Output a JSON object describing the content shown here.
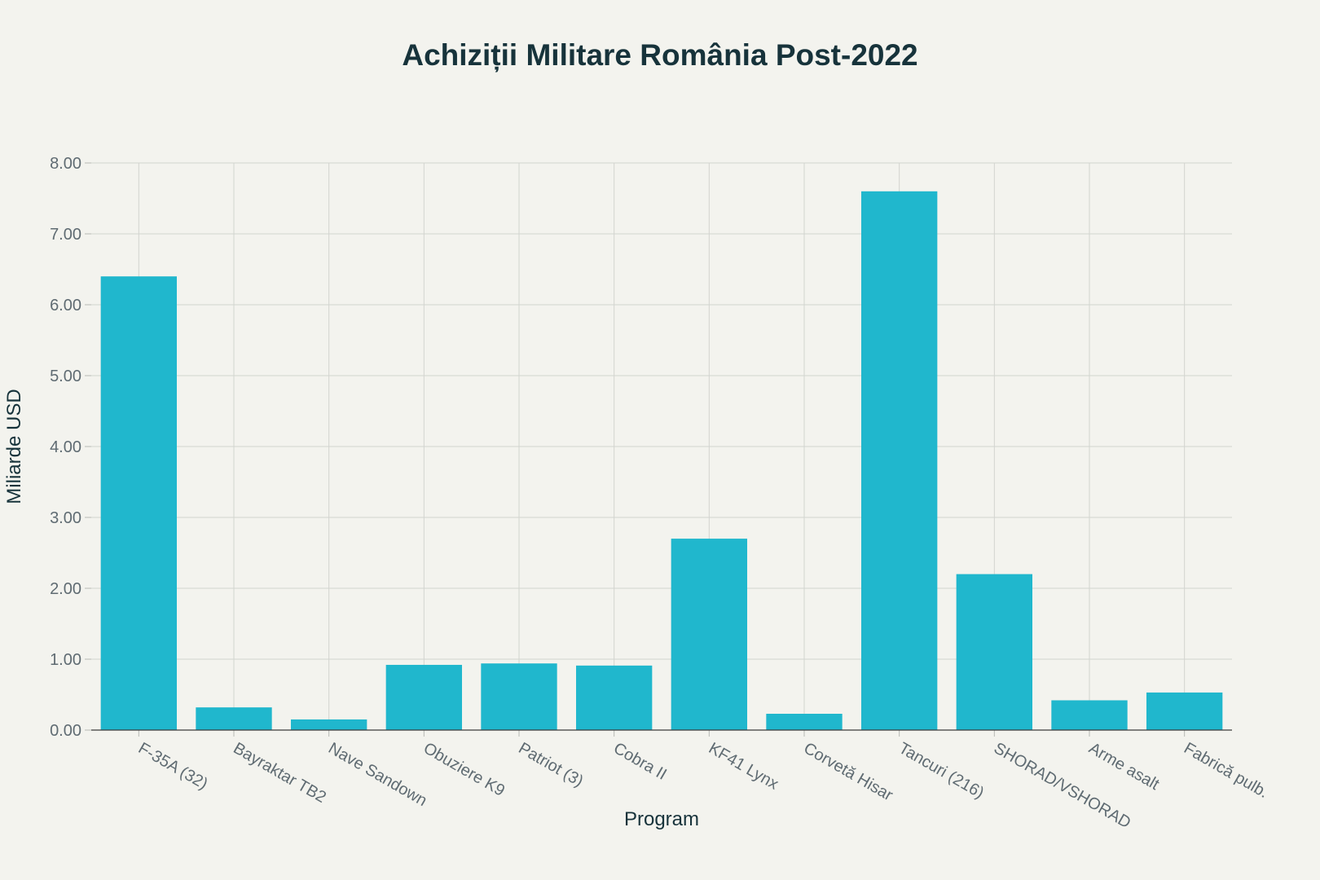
{
  "chart_data": {
    "type": "bar",
    "title": "Achiziții Militare România Post-2022",
    "xlabel": "Program",
    "ylabel": "Miliarde USD",
    "categories": [
      "F-35A (32)",
      "Bayraktar TB2",
      "Nave Sandown",
      "Obuziere K9",
      "Patriot (3)",
      "Cobra II",
      "KF41 Lynx",
      "Corvetă Hisar",
      "Tancuri (216)",
      "SHORAD/VSHORAD",
      "Arme asalt",
      "Fabrică pulb."
    ],
    "values": [
      6.4,
      0.32,
      0.15,
      0.92,
      0.94,
      0.91,
      2.7,
      0.23,
      7.6,
      2.2,
      0.42,
      0.53
    ],
    "ylim": [
      0,
      8
    ],
    "yticks": [
      "0.00",
      "1.00",
      "2.00",
      "3.00",
      "4.00",
      "5.00",
      "6.00",
      "7.00",
      "8.00"
    ],
    "grid": true,
    "colors": {
      "bar": "#20b7cd",
      "background": "#f3f3ee",
      "grid": "#d2d4cf"
    }
  }
}
